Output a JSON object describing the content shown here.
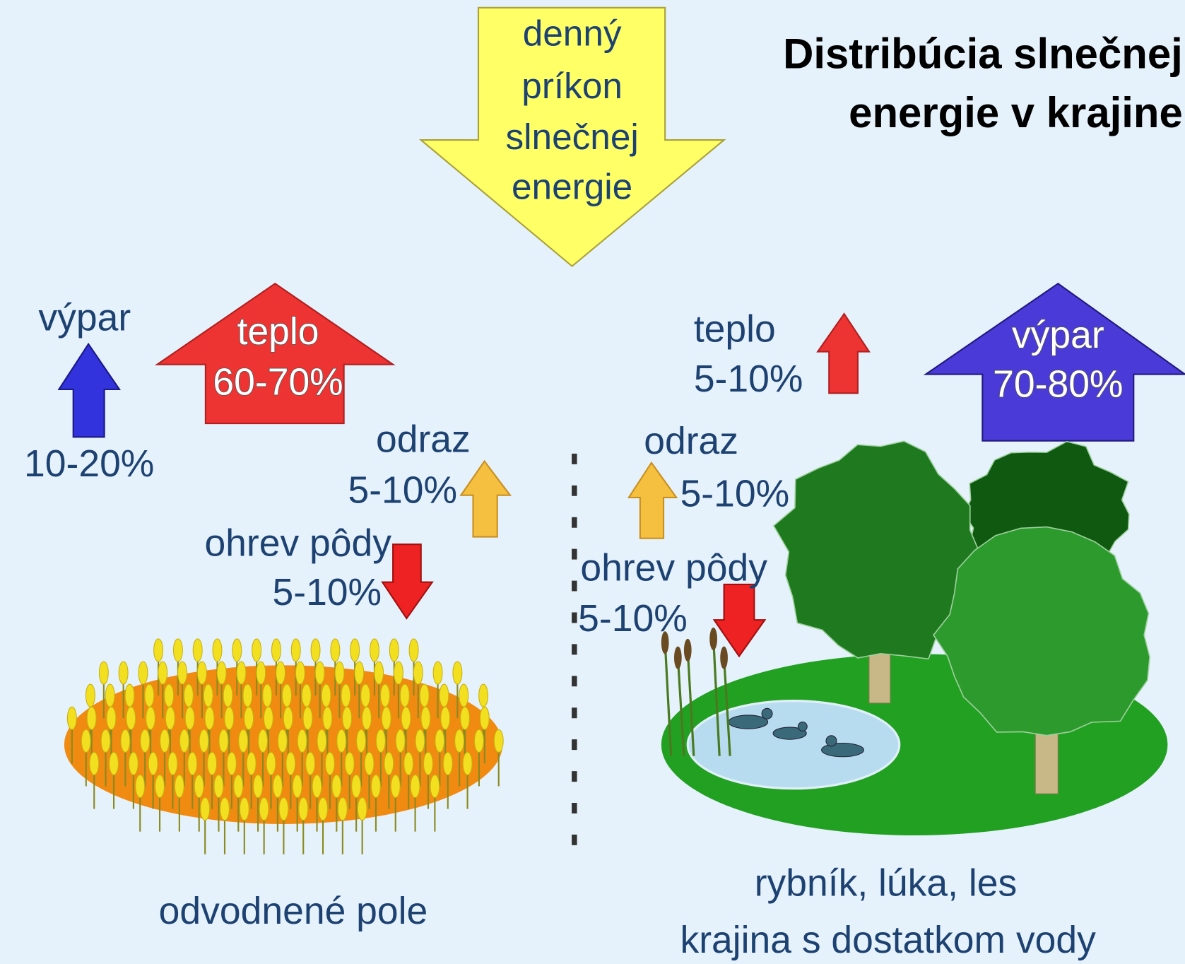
{
  "title": {
    "lines": [
      "Distribúcia slnečnej",
      "energie v krajine"
    ]
  },
  "sun_arrow": {
    "lines": [
      "denný",
      "príkon",
      "slnečnej",
      "energie"
    ]
  },
  "left": {
    "evaporation": {
      "label": "výpar",
      "value": "10-20%"
    },
    "heat": {
      "label": "teplo",
      "value": "60-70%"
    },
    "reflection": {
      "label": "odraz",
      "value": "5-10%"
    },
    "soil_heating": {
      "label": "ohrev pôdy",
      "value": "5-10%"
    },
    "caption": "odvodnené pole"
  },
  "right": {
    "heat": {
      "label": "teplo",
      "value": "5-10%"
    },
    "evaporation": {
      "label": "výpar",
      "value": "70-80%"
    },
    "reflection": {
      "label": "odraz",
      "value": "5-10%"
    },
    "soil_heating": {
      "label": "ohrev pôdy",
      "value": "5-10%"
    },
    "caption": [
      "rybník, lúka, les",
      "krajina s dostatkom vody"
    ]
  }
}
